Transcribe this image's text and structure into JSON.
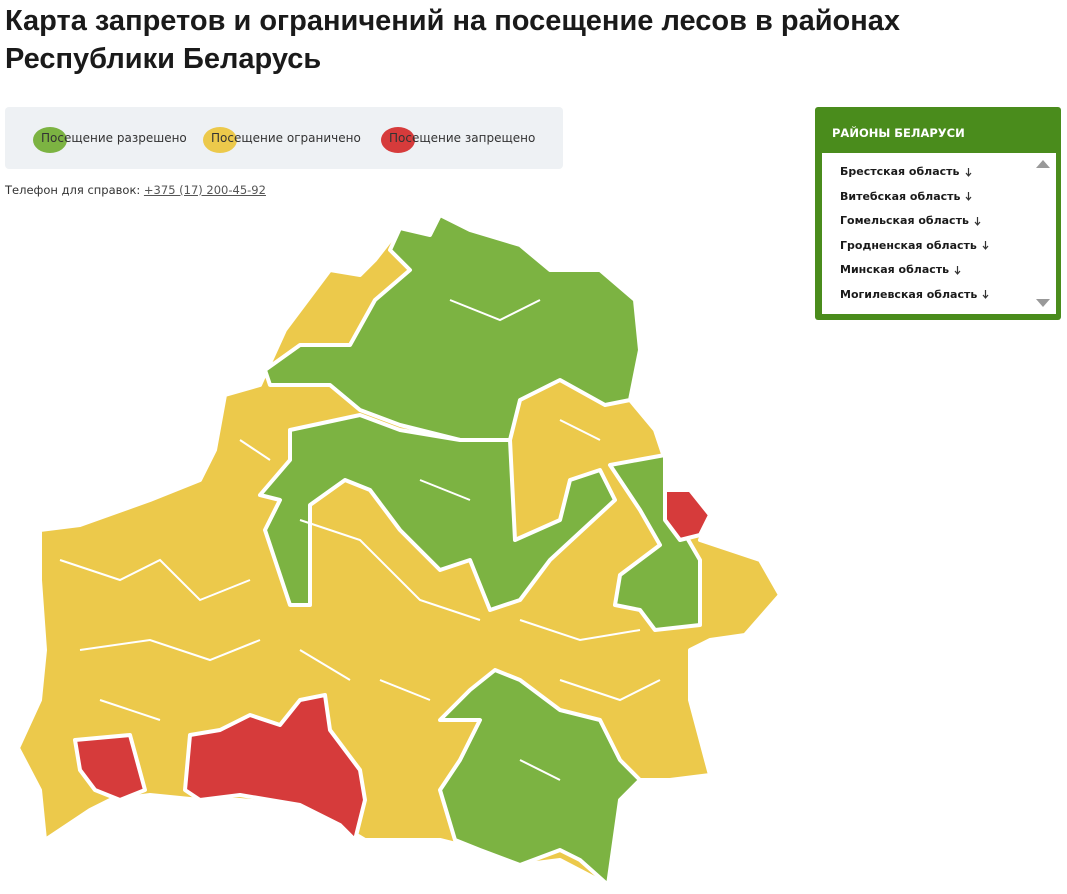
{
  "header": {
    "title": "Карта запретов и ограничений на посещение лесов в районах Республики Беларусь"
  },
  "legend": {
    "items": [
      {
        "label": "Посещение разрешено",
        "color": "#7cb342"
      },
      {
        "label": "Посещение ограничено",
        "color": "#ecc94b"
      },
      {
        "label": "Посещение запрещено",
        "color": "#d63b3b"
      }
    ]
  },
  "contact": {
    "label": "Телефон для справок:",
    "phone": "+375 (17) 200-45-92"
  },
  "sidebar": {
    "title": "РАЙОНЫ БЕЛАРУСИ",
    "items": [
      "Брестская область",
      "Витебская область",
      "Гомельская область",
      "Гродненская область",
      "Минская область",
      "Могилевская область"
    ]
  }
}
